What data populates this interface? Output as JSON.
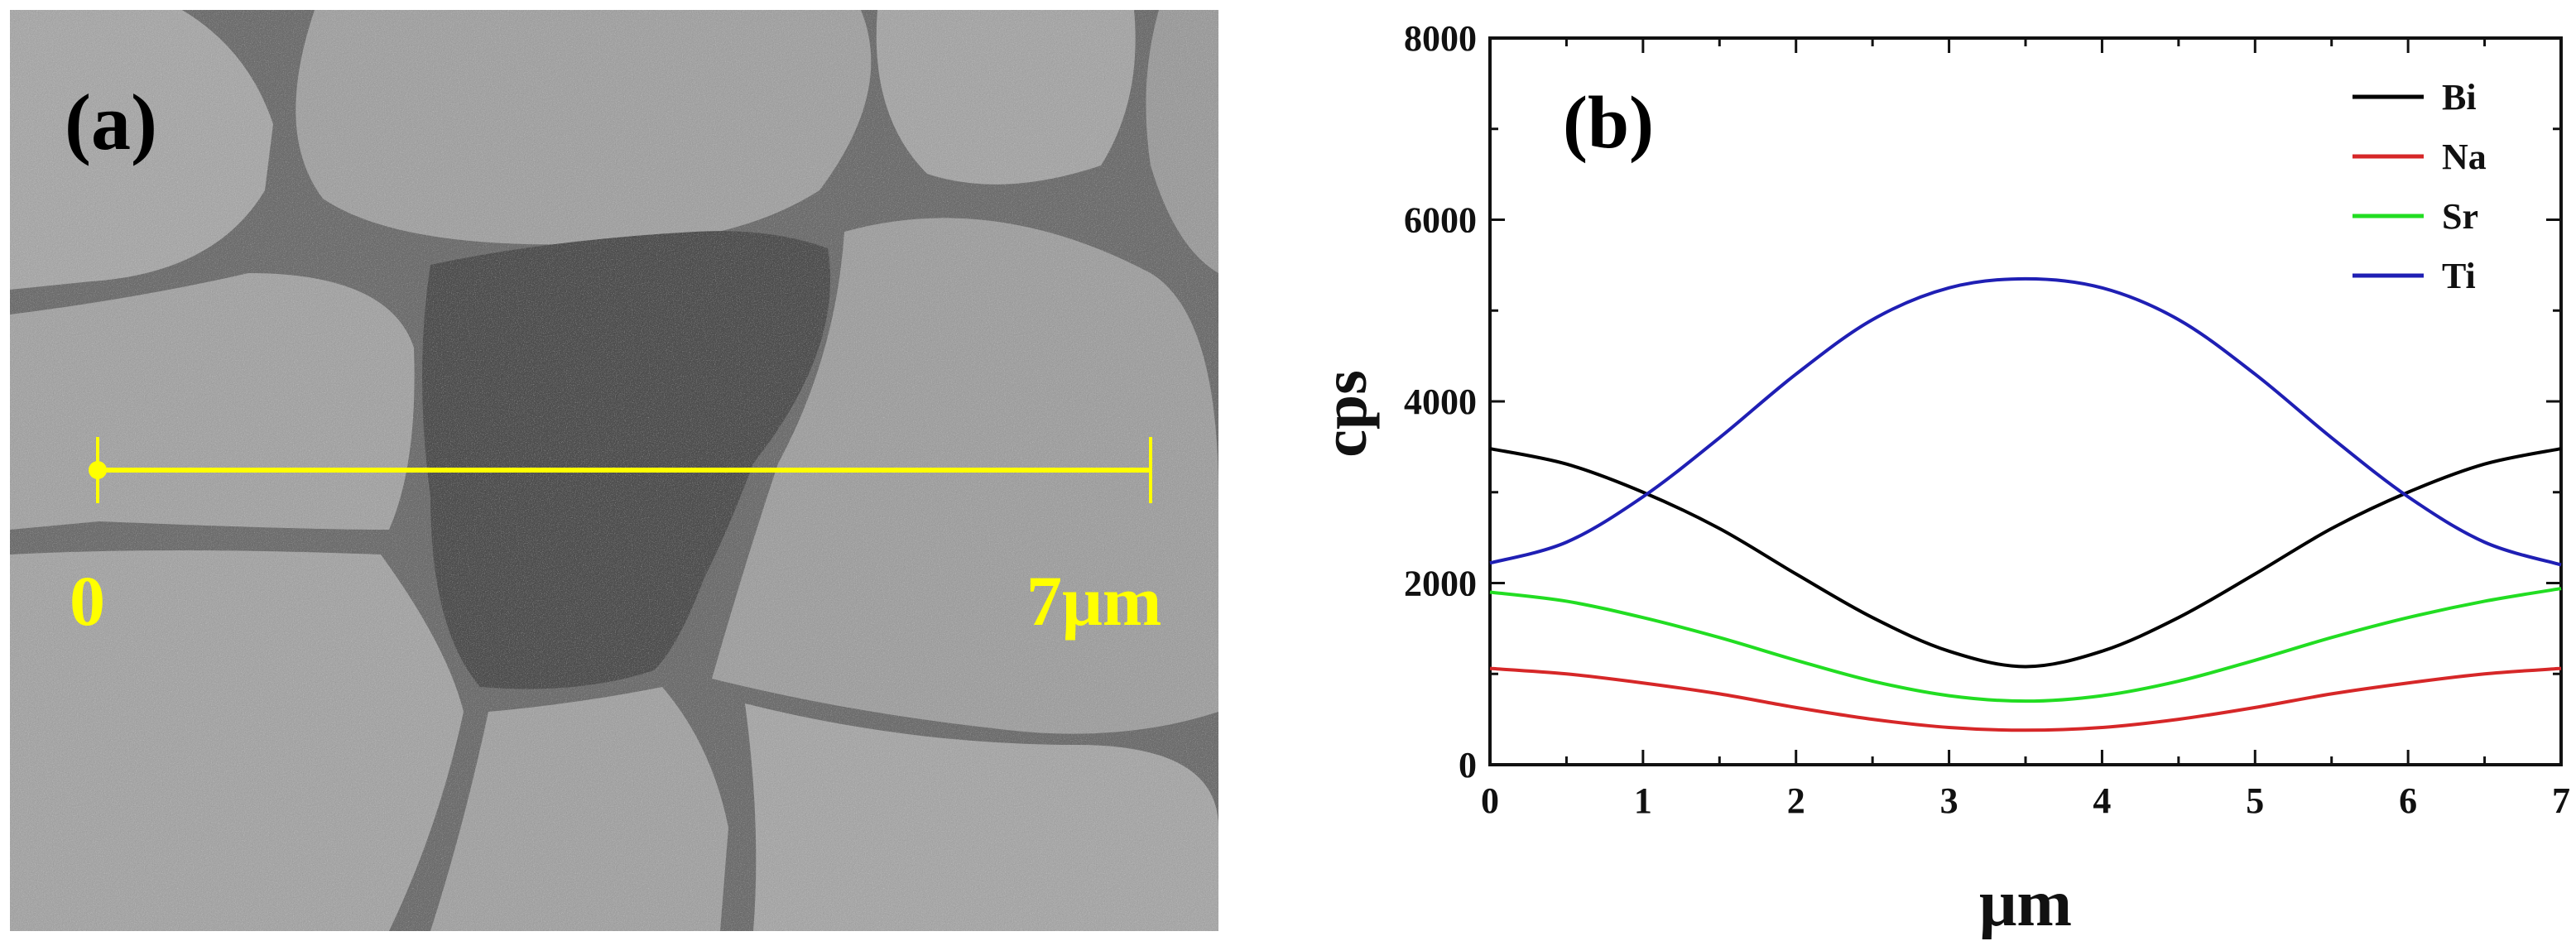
{
  "panel_a": {
    "label": "(a)",
    "scale_start": "0",
    "scale_end": "7μm",
    "scale_color": "#ffff00"
  },
  "chart_data": {
    "type": "line",
    "panel_label": "(b)",
    "xlabel": "μm",
    "ylabel": "cps",
    "xlim": [
      0,
      7
    ],
    "ylim": [
      0,
      8000
    ],
    "xticks": [
      0,
      1,
      2,
      3,
      4,
      5,
      6,
      7
    ],
    "yticks": [
      0,
      2000,
      4000,
      6000,
      8000
    ],
    "legend_position": "top-right",
    "x": [
      0,
      0.5,
      1,
      1.5,
      2,
      2.5,
      3,
      3.5,
      4,
      4.5,
      5,
      5.5,
      6,
      6.5,
      7
    ],
    "series": [
      {
        "name": "Bi",
        "color": "#000000",
        "values": [
          3480,
          3310,
          3000,
          2600,
          2100,
          1620,
          1250,
          1080,
          1250,
          1620,
          2100,
          2600,
          3000,
          3310,
          3480
        ]
      },
      {
        "name": "Na",
        "color": "#d62728",
        "values": [
          1060,
          1000,
          900,
          780,
          630,
          500,
          410,
          380,
          410,
          500,
          630,
          780,
          900,
          1000,
          1060
        ]
      },
      {
        "name": "Sr",
        "color": "#22dd22",
        "values": [
          1900,
          1800,
          1620,
          1400,
          1150,
          920,
          760,
          700,
          760,
          920,
          1150,
          1400,
          1620,
          1800,
          1940
        ]
      },
      {
        "name": "Ti",
        "color": "#1f1fb4",
        "values": [
          2220,
          2450,
          2950,
          3600,
          4300,
          4900,
          5250,
          5350,
          5250,
          4900,
          4300,
          3600,
          2950,
          2450,
          2200
        ]
      }
    ]
  }
}
